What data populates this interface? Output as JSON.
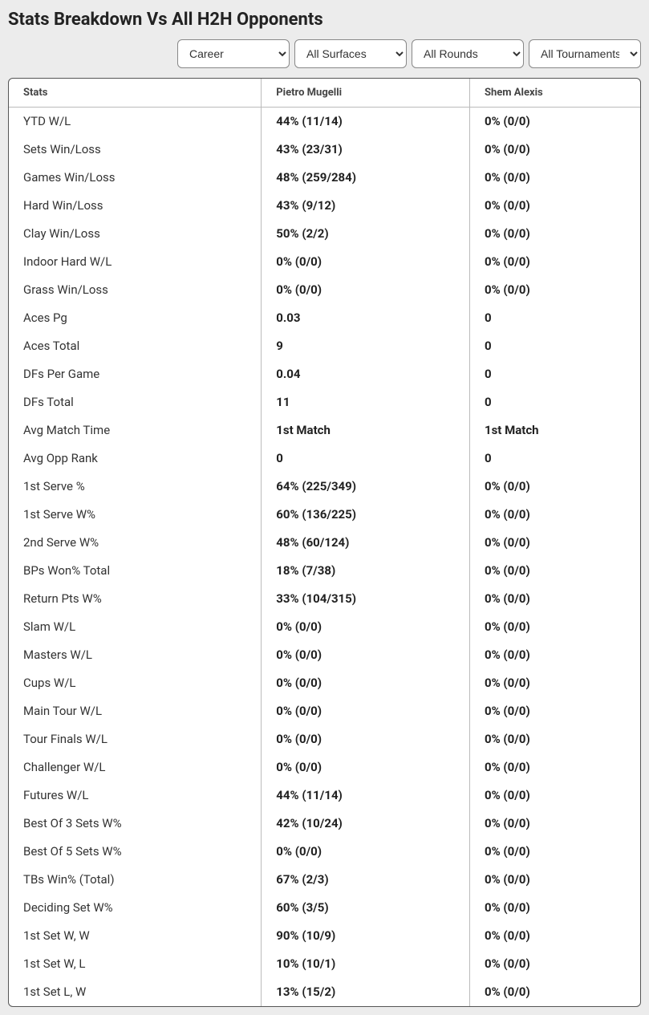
{
  "title": "Stats Breakdown Vs All H2H Opponents",
  "filters": {
    "period": "Career",
    "surface": "All Surfaces",
    "rounds": "All Rounds",
    "tournaments": "All Tournaments"
  },
  "table": {
    "headers": {
      "stats": "Stats",
      "player1": "Pietro Mugelli",
      "player2": "Shem Alexis"
    },
    "rows": [
      {
        "stat": "YTD W/L",
        "p1": "44% (11/14)",
        "p2": "0% (0/0)"
      },
      {
        "stat": "Sets Win/Loss",
        "p1": "43% (23/31)",
        "p2": "0% (0/0)"
      },
      {
        "stat": "Games Win/Loss",
        "p1": "48% (259/284)",
        "p2": "0% (0/0)"
      },
      {
        "stat": "Hard Win/Loss",
        "p1": "43% (9/12)",
        "p2": "0% (0/0)"
      },
      {
        "stat": "Clay Win/Loss",
        "p1": "50% (2/2)",
        "p2": "0% (0/0)"
      },
      {
        "stat": "Indoor Hard W/L",
        "p1": "0% (0/0)",
        "p2": "0% (0/0)"
      },
      {
        "stat": "Grass Win/Loss",
        "p1": "0% (0/0)",
        "p2": "0% (0/0)"
      },
      {
        "stat": "Aces Pg",
        "p1": "0.03",
        "p2": "0"
      },
      {
        "stat": "Aces Total",
        "p1": "9",
        "p2": "0"
      },
      {
        "stat": "DFs Per Game",
        "p1": "0.04",
        "p2": "0"
      },
      {
        "stat": "DFs Total",
        "p1": "11",
        "p2": "0"
      },
      {
        "stat": "Avg Match Time",
        "p1": "1st Match",
        "p2": "1st Match"
      },
      {
        "stat": "Avg Opp Rank",
        "p1": "0",
        "p2": "0"
      },
      {
        "stat": "1st Serve %",
        "p1": "64% (225/349)",
        "p2": "0% (0/0)"
      },
      {
        "stat": "1st Serve W%",
        "p1": "60% (136/225)",
        "p2": "0% (0/0)"
      },
      {
        "stat": "2nd Serve W%",
        "p1": "48% (60/124)",
        "p2": "0% (0/0)"
      },
      {
        "stat": "BPs Won% Total",
        "p1": "18% (7/38)",
        "p2": "0% (0/0)"
      },
      {
        "stat": "Return Pts W%",
        "p1": "33% (104/315)",
        "p2": "0% (0/0)"
      },
      {
        "stat": "Slam W/L",
        "p1": "0% (0/0)",
        "p2": "0% (0/0)"
      },
      {
        "stat": "Masters W/L",
        "p1": "0% (0/0)",
        "p2": "0% (0/0)"
      },
      {
        "stat": "Cups W/L",
        "p1": "0% (0/0)",
        "p2": "0% (0/0)"
      },
      {
        "stat": "Main Tour W/L",
        "p1": "0% (0/0)",
        "p2": "0% (0/0)"
      },
      {
        "stat": "Tour Finals W/L",
        "p1": "0% (0/0)",
        "p2": "0% (0/0)"
      },
      {
        "stat": "Challenger W/L",
        "p1": "0% (0/0)",
        "p2": "0% (0/0)"
      },
      {
        "stat": "Futures W/L",
        "p1": "44% (11/14)",
        "p2": "0% (0/0)"
      },
      {
        "stat": "Best Of 3 Sets W%",
        "p1": "42% (10/24)",
        "p2": "0% (0/0)"
      },
      {
        "stat": "Best Of 5 Sets W%",
        "p1": "0% (0/0)",
        "p2": "0% (0/0)"
      },
      {
        "stat": "TBs Win% (Total)",
        "p1": "67% (2/3)",
        "p2": "0% (0/0)"
      },
      {
        "stat": "Deciding Set W%",
        "p1": "60% (3/5)",
        "p2": "0% (0/0)"
      },
      {
        "stat": "1st Set W, W",
        "p1": "90% (10/9)",
        "p2": "0% (0/0)"
      },
      {
        "stat": "1st Set W, L",
        "p1": "10% (10/1)",
        "p2": "0% (0/0)"
      },
      {
        "stat": "1st Set L, W",
        "p1": "13% (15/2)",
        "p2": "0% (0/0)"
      }
    ]
  },
  "colors": {
    "background": "#ececec",
    "table_bg": "#ffffff",
    "border": "#bbbbbb",
    "text": "#333333",
    "bold_text": "#222222"
  }
}
